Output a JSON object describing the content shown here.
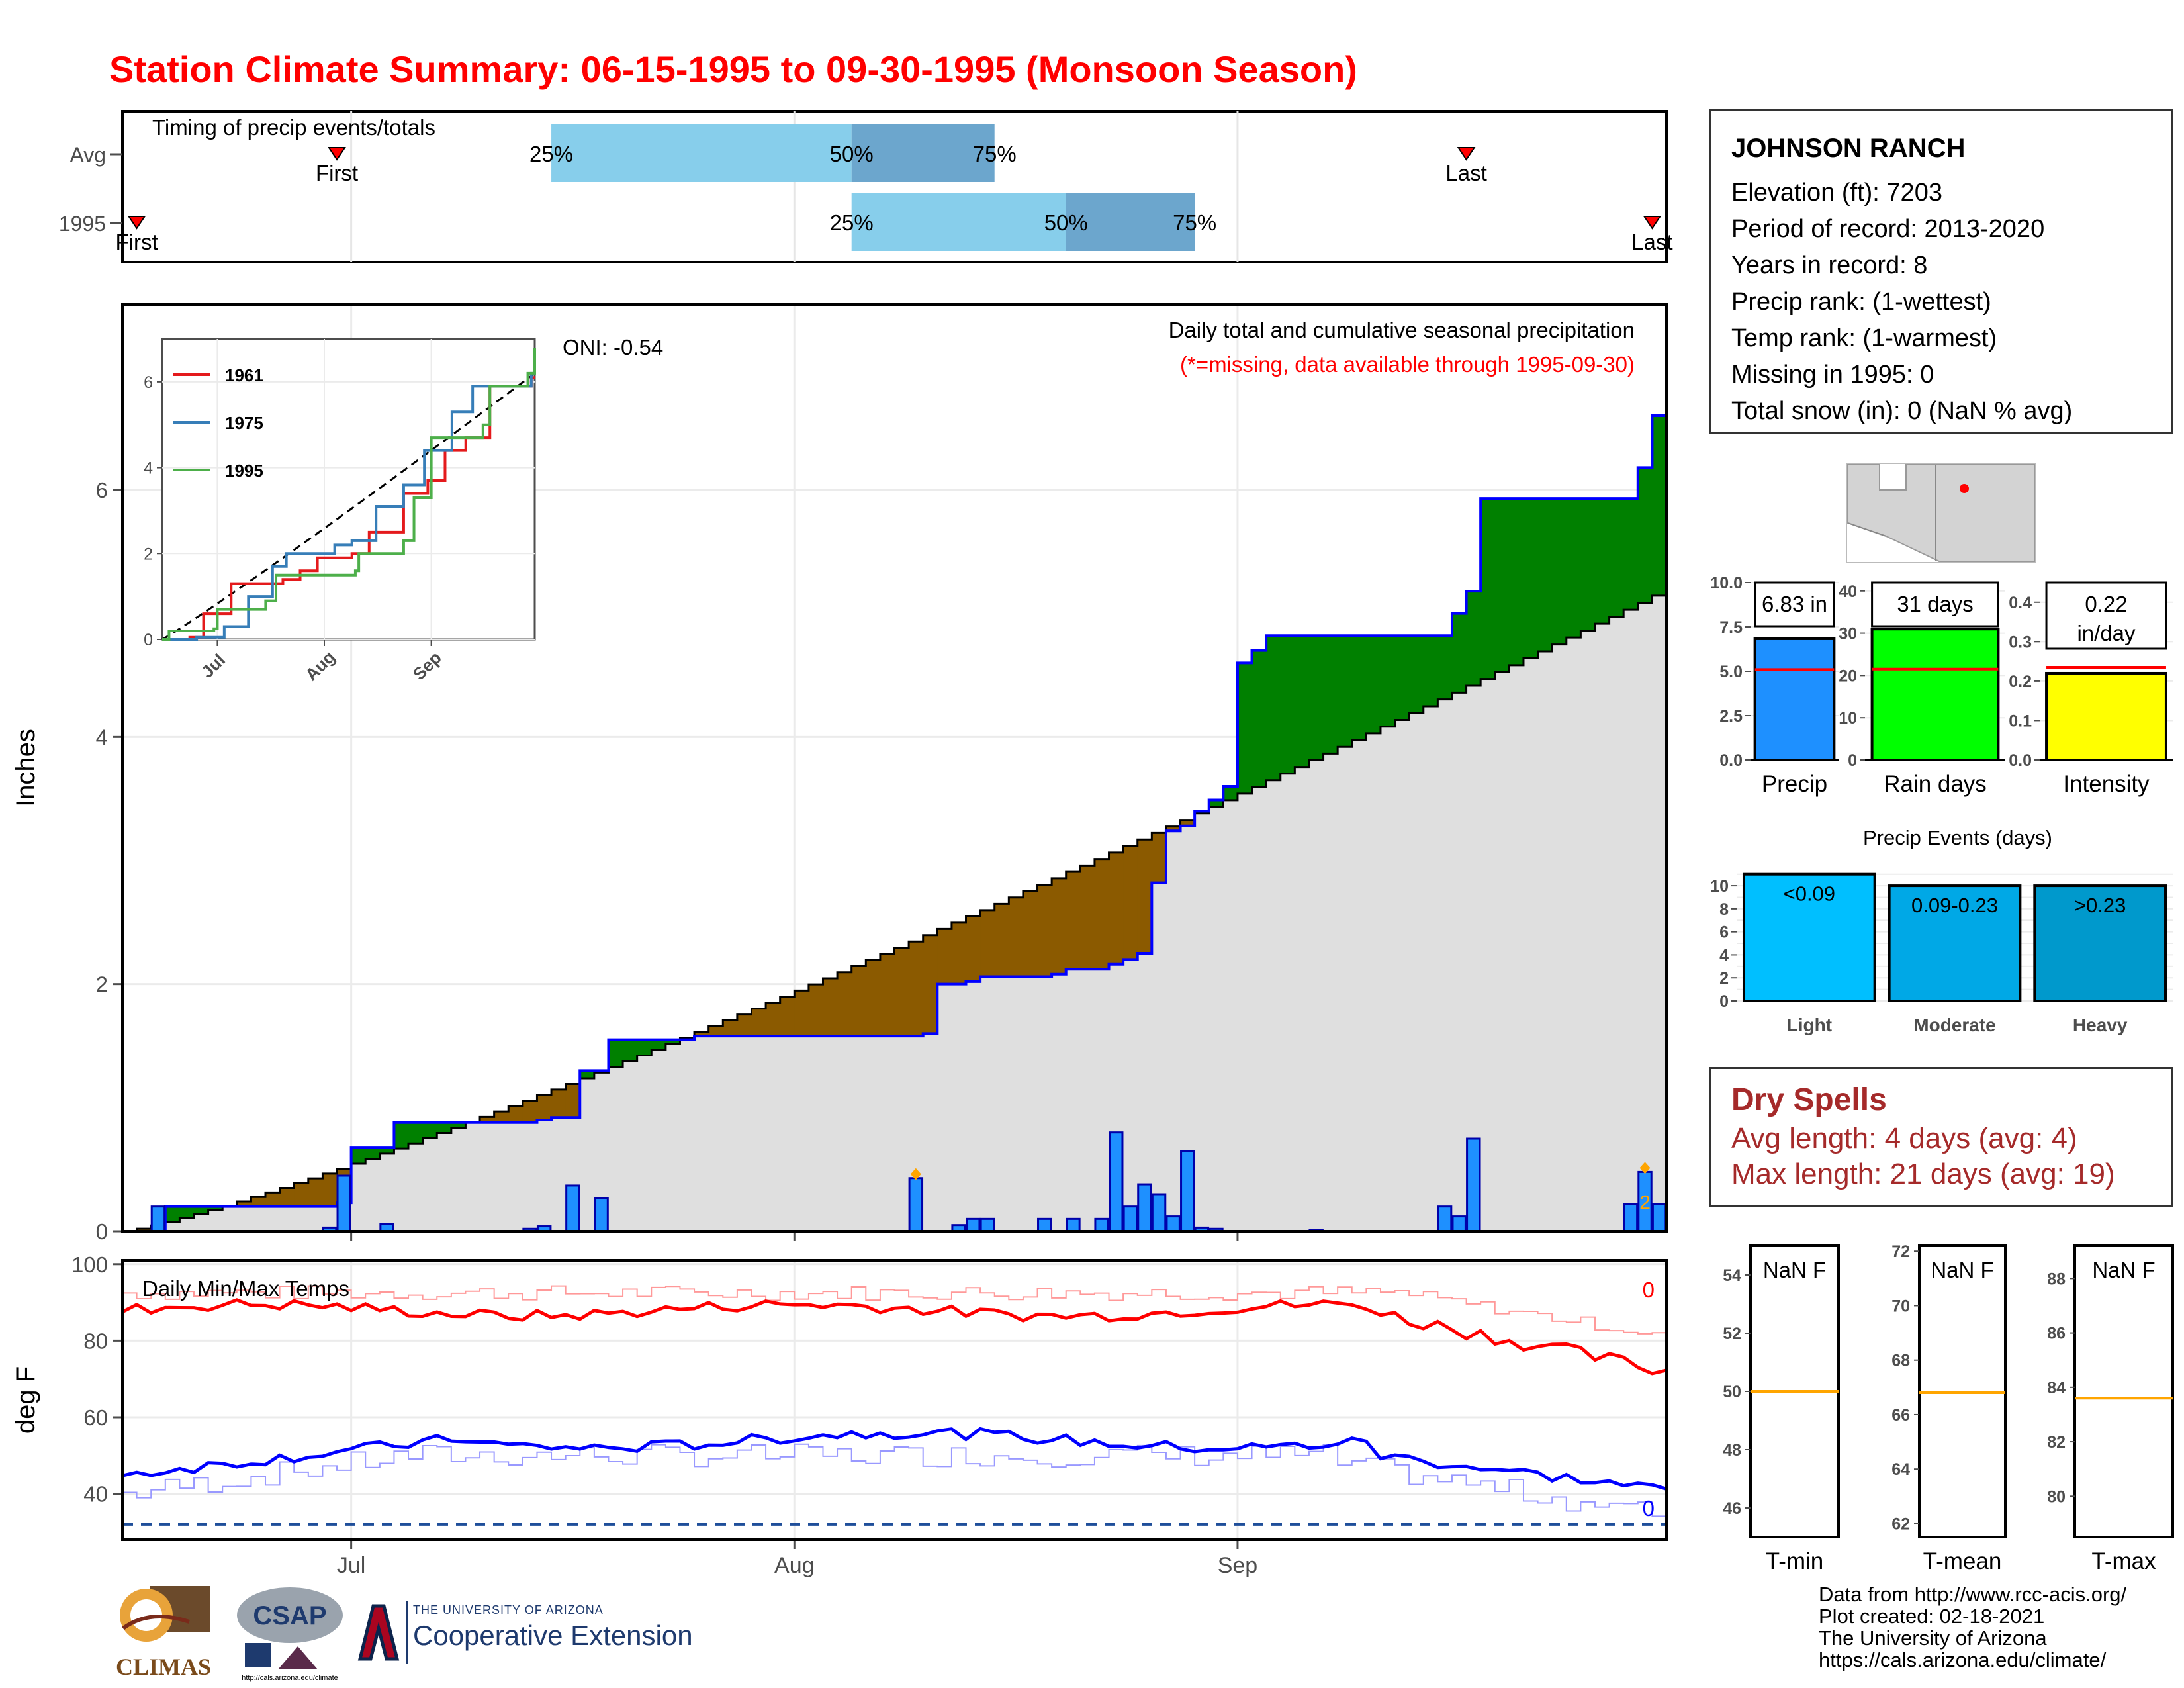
{
  "title": "Station Climate Summary: 06-15-1995 to 09-30-1995 (Monsoon Season)",
  "station": {
    "name": "JOHNSON RANCH",
    "lines": [
      "Elevation (ft): 7203",
      "Period of record: 2013-2020",
      "Years in record: 8",
      "Precip rank:  (1-wettest)",
      "Temp rank:  (1-warmest)",
      "Missing in 1995: 0",
      "Total snow (in): 0 (NaN % avg)"
    ]
  },
  "dry_spells": {
    "heading": "Dry Spells",
    "avg": "Avg length: 4 days (avg: 4)",
    "max": "Max length: 21 days (avg: 19)"
  },
  "credits": [
    "Data from http://www.rcc-acis.org/",
    "Plot created: 02-18-2021",
    "The University of Arizona",
    "https://cals.arizona.edu/climate/"
  ],
  "logos": {
    "climas": "CLIMAS",
    "csap": "CSAP",
    "csap_url": "http://cals.arizona.edu/climate",
    "ua_small": "THE UNIVERSITY OF ARIZONA",
    "ua_big": "Cooperative Extension"
  },
  "colors": {
    "title": "#ff0000",
    "above": "#008000",
    "below": "#8b5a00",
    "avg_fill": "#dfdfdf",
    "daily": "#1e90ff",
    "tmax": "#ff0000",
    "tmin": "#0000ff",
    "light_q": "#87ceeb",
    "dark_q": "#6ca6cd"
  },
  "chart_data": [
    {
      "id": "timing",
      "type": "bar",
      "title": "Timing of precip events/totals",
      "day0": "06-15",
      "rows": [
        {
          "name": "Avg",
          "first": "06-30",
          "last": "09-17",
          "q25": "07-15",
          "q50": "08-05",
          "q75": "08-15",
          "first_label": "First",
          "last_label": "Last",
          "q25_label": "25%",
          "q50_label": "50%",
          "q75_label": "75%"
        },
        {
          "name": "1995",
          "first": "06-16",
          "last": "09-30",
          "q25": "08-05",
          "q50": "08-20",
          "q75": "08-29",
          "first_label": "First",
          "last_label": "Last",
          "q25_label": "25%",
          "q50_label": "50%",
          "q75_label": "75%"
        }
      ]
    },
    {
      "id": "precip",
      "type": "area",
      "ylabel": "Inches",
      "ylim": [
        0,
        7.5
      ],
      "yticks": [
        0,
        2,
        4,
        6
      ],
      "xticks": [
        "Jul",
        "Aug",
        "Sep"
      ],
      "xtick_days": [
        16,
        47,
        78
      ],
      "days": 108,
      "oni": "ONI: -0.54",
      "note": "Daily total and cumulative seasonal precipitation",
      "note2": "(*=missing, data available through 1995-09-30)",
      "daily_flag": "2",
      "avg_final": 5.2,
      "cumulative_1995": [
        [
          0,
          0
        ],
        [
          3,
          0.2
        ],
        [
          15,
          0.23
        ],
        [
          16,
          0.68
        ],
        [
          19,
          0.88
        ],
        [
          29,
          0.9
        ],
        [
          30,
          0.92
        ],
        [
          32,
          1.3
        ],
        [
          34,
          1.55
        ],
        [
          40,
          1.58
        ],
        [
          56,
          1.6
        ],
        [
          57,
          2.0
        ],
        [
          59,
          2.02
        ],
        [
          60,
          2.06
        ],
        [
          65,
          2.08
        ],
        [
          66,
          2.12
        ],
        [
          69,
          2.16
        ],
        [
          70,
          2.2
        ],
        [
          71,
          2.25
        ],
        [
          72,
          2.82
        ],
        [
          73,
          3.24
        ],
        [
          74,
          3.28
        ],
        [
          75,
          3.4
        ],
        [
          76,
          3.49
        ],
        [
          77,
          3.6
        ],
        [
          78,
          4.6
        ],
        [
          79,
          4.7
        ],
        [
          80,
          4.82
        ],
        [
          92,
          4.82
        ],
        [
          93,
          5.0
        ],
        [
          94,
          5.18
        ],
        [
          95,
          5.93
        ],
        [
          106,
          6.18
        ],
        [
          107,
          6.6
        ],
        [
          108,
          6.83
        ]
      ],
      "daily_bars": [
        [
          3,
          0.2
        ],
        [
          15,
          0.03
        ],
        [
          16,
          0.45
        ],
        [
          19,
          0.06
        ],
        [
          29,
          0.02
        ],
        [
          30,
          0.04
        ],
        [
          32,
          0.37
        ],
        [
          34,
          0.27
        ],
        [
          56,
          0.43
        ],
        [
          59,
          0.05
        ],
        [
          60,
          0.1
        ],
        [
          61,
          0.1
        ],
        [
          65,
          0.1
        ],
        [
          67,
          0.1
        ],
        [
          69,
          0.1
        ],
        [
          70,
          0.8
        ],
        [
          71,
          0.2
        ],
        [
          72,
          0.38
        ],
        [
          73,
          0.3
        ],
        [
          74,
          0.12
        ],
        [
          75,
          0.65
        ],
        [
          76,
          0.03
        ],
        [
          77,
          0.02
        ],
        [
          84,
          0.01
        ],
        [
          93,
          0.2
        ],
        [
          94,
          0.12
        ],
        [
          95,
          0.75
        ],
        [
          106,
          0.22
        ],
        [
          107,
          0.48
        ],
        [
          108,
          0.22
        ]
      ],
      "missing_markers": [
        [
          56,
          0.43
        ],
        [
          107,
          0.48
        ]
      ]
    },
    {
      "id": "inset",
      "type": "line",
      "yticks": [
        0,
        2,
        4,
        6
      ],
      "xticks": [
        "Jul",
        "Aug",
        "Sep"
      ],
      "series": [
        {
          "name": "1961",
          "color": "#e41a1c"
        },
        {
          "name": "1975",
          "color": "#377eb8"
        },
        {
          "name": "1995",
          "color": "#4daf4a"
        }
      ]
    },
    {
      "id": "temps",
      "type": "line",
      "title": "Daily Min/Max Temps",
      "ylabel": "deg F",
      "ylim": [
        28,
        101
      ],
      "yticks": [
        40,
        60,
        80,
        100
      ],
      "xticks": [
        "Jul",
        "Aug",
        "Sep"
      ],
      "count_max": "0",
      "count_min": "0",
      "freeze_line": 32
    },
    {
      "id": "summary_bars",
      "type": "bar",
      "panels": [
        {
          "name": "Precip",
          "label": "6.83 in",
          "value": 6.83,
          "avg": 5.1,
          "ymax": 10,
          "ticks": [
            "0.0",
            "2.5",
            "5.0",
            "7.5",
            "10.0"
          ],
          "tickvals": [
            0,
            2.5,
            5,
            7.5,
            10
          ],
          "color": "#1e90ff"
        },
        {
          "name": "Rain days",
          "label": "31 days",
          "value": 31,
          "avg": 21.5,
          "ymax": 42,
          "ticks": [
            "0",
            "10",
            "20",
            "30",
            "40"
          ],
          "tickvals": [
            0,
            10,
            20,
            30,
            40
          ],
          "color": "#00ff00"
        },
        {
          "name": "Intensity",
          "label": "0.22",
          "label2": "in/day",
          "value": 0.22,
          "avg": 0.235,
          "ymax": 0.45,
          "ticks": [
            "0.0",
            "0.1",
            "0.2",
            "0.3",
            "0.4"
          ],
          "tickvals": [
            0,
            0.1,
            0.2,
            0.3,
            0.4
          ],
          "color": "#ffff00"
        }
      ]
    },
    {
      "id": "events",
      "type": "bar",
      "title": "Precip Events (days)",
      "categories": [
        "Light",
        "Moderate",
        "Heavy"
      ],
      "labels": [
        "<0.09",
        "0.09-0.23",
        ">0.23"
      ],
      "values": [
        11,
        10,
        10
      ],
      "ymax": 11.5,
      "yticks": [
        0,
        2,
        4,
        6,
        8,
        10
      ],
      "colors": [
        "#00bfff",
        "#00a8e6",
        "#0099cc"
      ]
    },
    {
      "id": "temp_summary",
      "type": "bar",
      "panels": [
        {
          "name": "T-min",
          "label": "NaN F",
          "avg": 50,
          "ylim": [
            45,
            55
          ],
          "yticks": [
            46,
            48,
            50,
            52,
            54
          ]
        },
        {
          "name": "T-mean",
          "label": "NaN F",
          "avg": 66.8,
          "ylim": [
            61.5,
            72.2
          ],
          "yticks": [
            62,
            64,
            66,
            68,
            70,
            72
          ]
        },
        {
          "name": "T-max",
          "label": "NaN F",
          "avg": 83.6,
          "ylim": [
            78.5,
            89.2
          ],
          "yticks": [
            80,
            82,
            84,
            86,
            88
          ]
        }
      ]
    }
  ]
}
